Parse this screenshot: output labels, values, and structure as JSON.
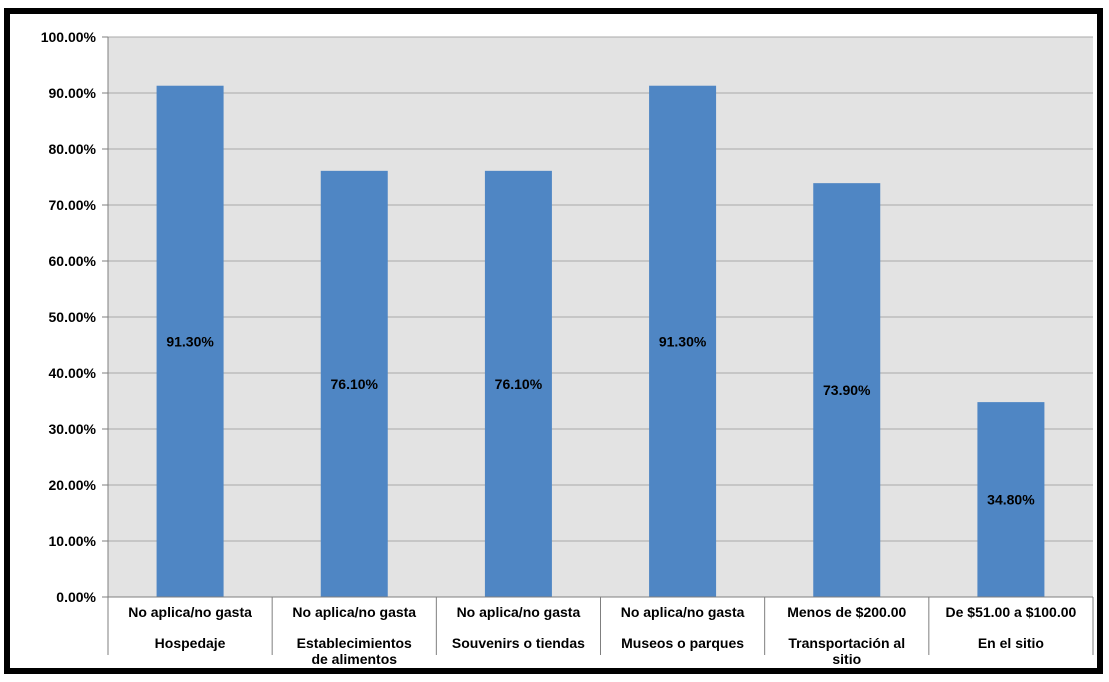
{
  "chart_data": {
    "type": "bar",
    "categories": [
      {
        "top": "No aplica/no gasta",
        "bottom": [
          "Hospedaje"
        ]
      },
      {
        "top": "No aplica/no gasta",
        "bottom": [
          "Establecimientos",
          "de alimentos"
        ]
      },
      {
        "top": "No aplica/no gasta",
        "bottom": [
          "Souvenirs o tiendas"
        ]
      },
      {
        "top": "No aplica/no gasta",
        "bottom": [
          "Museos o parques"
        ]
      },
      {
        "top": "Menos de $200.00",
        "bottom": [
          "Transportación al",
          "sitio"
        ]
      },
      {
        "top": "De $51.00 a $100.00",
        "bottom": [
          "En el sitio"
        ]
      }
    ],
    "values": [
      91.3,
      76.1,
      76.1,
      91.3,
      73.9,
      34.8
    ],
    "data_labels": [
      "91.30%",
      "76.10%",
      "76.10%",
      "91.30%",
      "73.90%",
      "34.80%"
    ],
    "y_ticks": [
      "0.00%",
      "10.00%",
      "20.00%",
      "30.00%",
      "40.00%",
      "50.00%",
      "60.00%",
      "70.00%",
      "80.00%",
      "90.00%",
      "100.00%"
    ],
    "ylim": [
      0,
      100
    ],
    "grid": true,
    "legend": "none",
    "colors": {
      "bar": "#4f86c4",
      "plot_bg": "#e3e3e3",
      "gridline": "#a8a8a8",
      "frame": "#000000"
    }
  }
}
